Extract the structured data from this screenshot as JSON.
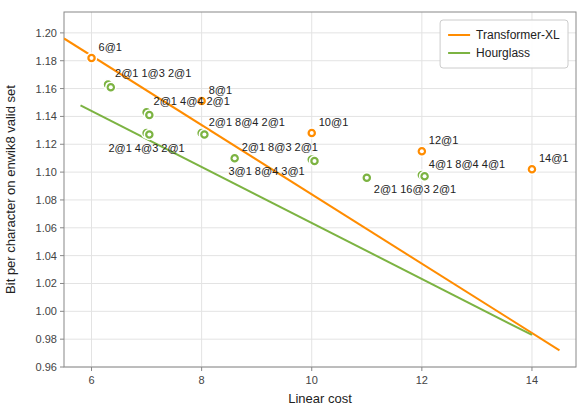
{
  "chart_data": {
    "type": "scatter",
    "xlabel": "Linear cost",
    "ylabel": "Bit per character on enwik8 valid set",
    "xlim": [
      5.5,
      14.8
    ],
    "ylim": [
      0.96,
      1.215
    ],
    "xticks": [
      6,
      8,
      10,
      12,
      14
    ],
    "yticks": [
      0.96,
      0.98,
      {
        "value": 1.0,
        "label": "1.00"
      },
      1.02,
      1.04,
      1.06,
      1.08,
      {
        "value": 1.1,
        "label": "1.10"
      },
      1.12,
      1.14,
      1.16,
      1.18,
      {
        "value": 1.2,
        "label": "1.20"
      }
    ],
    "grid": true,
    "legend": "upper right",
    "series": [
      {
        "name": "Transformer-XL",
        "type": "line",
        "color": "#FF8C00",
        "x": [
          5.5,
          14.5
        ],
        "values": [
          1.196,
          0.972
        ]
      },
      {
        "name": "Hourglass",
        "type": "line",
        "color": "#7CB342",
        "x": [
          5.8,
          14.0
        ],
        "values": [
          1.148,
          0.983
        ]
      },
      {
        "type": "scatter",
        "marker": "donut",
        "color": "#FF8C00",
        "x": [
          6,
          8,
          10,
          12,
          14
        ],
        "values": [
          1.182,
          1.151,
          1.128,
          1.115,
          1.102
        ],
        "labels": [
          "6@1",
          "8@1",
          "10@1",
          "12@1",
          "14@1"
        ]
      },
      {
        "type": "scatter",
        "marker": "donut",
        "color": "#7CB342",
        "x": [
          6.3,
          6.35,
          7.0,
          7.05,
          7.0,
          7.05,
          8.0,
          8.05,
          8.6,
          10.0,
          10.05,
          11.0,
          12.0,
          12.05
        ],
        "values": [
          1.163,
          1.161,
          1.143,
          1.141,
          1.128,
          1.127,
          1.128,
          1.127,
          1.11,
          1.109,
          1.108,
          1.096,
          1.098,
          1.097
        ],
        "labels": [
          "2@1 1@3 2@1",
          null,
          "2@1 4@4 2@1",
          null,
          "2@1 4@3 2@1",
          null,
          "2@1 8@4 2@1",
          null,
          "2@1 8@3 2@1",
          "3@1 8@4 3@1",
          null,
          "2@1 16@3 2@1",
          "4@1 8@4 4@1",
          null
        ]
      }
    ]
  }
}
